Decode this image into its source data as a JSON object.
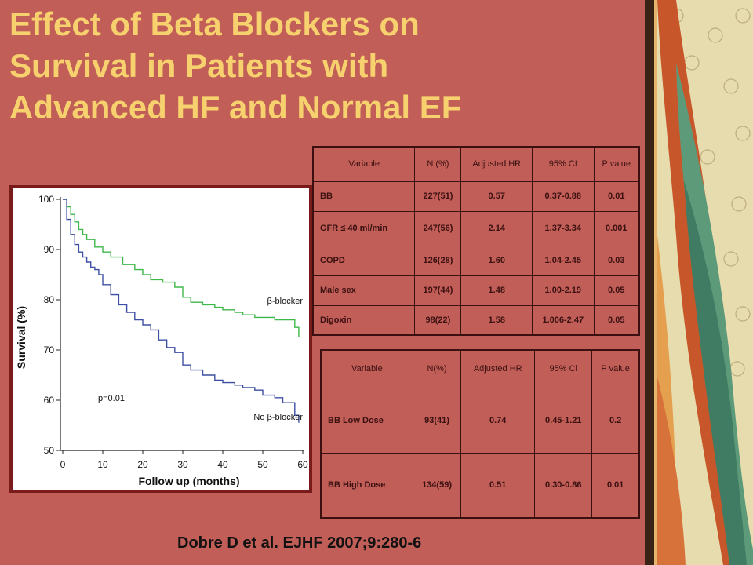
{
  "title_lines": [
    "Effect of Beta Blockers on",
    "Survival in Patients with",
    "Advanced HF and Normal EF"
  ],
  "citation": "Dobre D et al. EJHF 2007;9:280-6",
  "colors": {
    "background": "#c25e58",
    "title": "#f6d16e",
    "bb_series": "#3fb84a",
    "no_bb_series": "#3d4fa3"
  },
  "table1": {
    "headers": [
      "Variable",
      "N (%)",
      "Adjusted HR",
      "95% CI",
      "P value"
    ],
    "rows": [
      [
        "BB",
        "227(51)",
        "0.57",
        "0.37-0.88",
        "0.01"
      ],
      [
        "GFR ≤ 40 ml/min",
        "247(56)",
        "2.14",
        "1.37-3.34",
        "0.001"
      ],
      [
        "COPD",
        "126(28)",
        "1.60",
        "1.04-2.45",
        "0.03"
      ],
      [
        "Male sex",
        "197(44)",
        "1.48",
        "1.00-2.19",
        "0.05"
      ],
      [
        "Digoxin",
        "98(22)",
        "1.58",
        "1.006-2.47",
        "0.05"
      ]
    ]
  },
  "table2": {
    "headers": [
      "Variable",
      "N(%)",
      "Adjusted HR",
      "95% Ci",
      "P value"
    ],
    "rows": [
      [
        "BB Low Dose",
        "93(41)",
        "0.74",
        "0.45-1.21",
        "0.2"
      ],
      [
        "BB High Dose",
        "134(59)",
        "0.51",
        "0.30-0.86",
        "0.01"
      ]
    ]
  },
  "chart_data": {
    "type": "line",
    "title": "",
    "xlabel": "Follow up (months)",
    "ylabel": "Survival (%)",
    "xlim": [
      0,
      60
    ],
    "ylim": [
      50,
      100
    ],
    "xticks": [
      0,
      10,
      20,
      30,
      40,
      50,
      60
    ],
    "yticks": [
      50,
      60,
      70,
      80,
      90,
      100
    ],
    "annotation": "p=0.01",
    "series": [
      {
        "name": "β-blocker",
        "color": "#3fb84a",
        "x": [
          0,
          1,
          2,
          3,
          4,
          5,
          6,
          8,
          10,
          12,
          15,
          18,
          20,
          22,
          25,
          28,
          30,
          32,
          35,
          38,
          40,
          43,
          45,
          48,
          50,
          53,
          55,
          58,
          59
        ],
        "y": [
          100,
          98.5,
          97,
          95.5,
          94,
          93,
          92,
          90.5,
          89.5,
          88.5,
          87,
          86,
          85,
          84,
          83.5,
          82.5,
          80.5,
          79.5,
          79,
          78.5,
          78,
          77.5,
          77,
          76.5,
          76.5,
          76,
          76,
          74.5,
          72.5
        ]
      },
      {
        "name": "No β-blocker",
        "color": "#3d4fa3",
        "x": [
          0,
          1,
          2,
          3,
          4,
          5,
          6,
          7,
          8,
          9,
          10,
          12,
          14,
          16,
          18,
          20,
          22,
          24,
          26,
          28,
          30,
          32,
          35,
          38,
          40,
          43,
          45,
          48,
          50,
          53,
          55,
          58,
          59
        ],
        "y": [
          100,
          96,
          93,
          91,
          89.5,
          88.5,
          87.5,
          86.5,
          86,
          85,
          83,
          81,
          79,
          77.5,
          76,
          75,
          74,
          72,
          70.5,
          69.5,
          67,
          66,
          65,
          64,
          63.5,
          63,
          62.5,
          62,
          61,
          60.5,
          59.5,
          57,
          55.5
        ]
      }
    ],
    "series_labels": [
      "β-blocker",
      "No β-blocker"
    ]
  }
}
